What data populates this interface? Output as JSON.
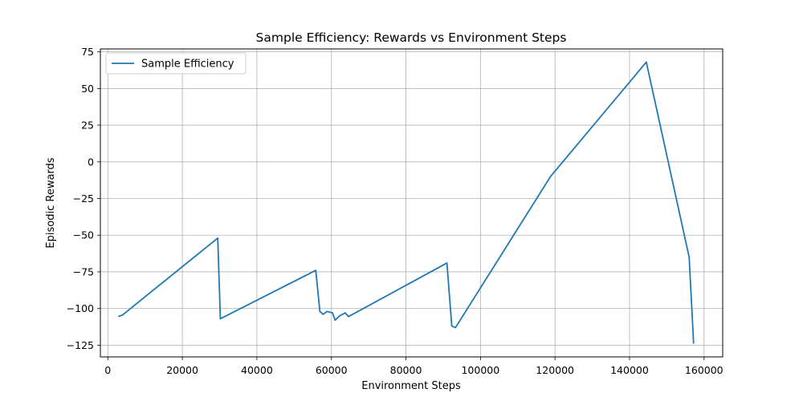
{
  "chart_data": {
    "type": "line",
    "title": "Sample Efficiency: Rewards vs Environment Steps",
    "xlabel": "Environment Steps",
    "ylabel": "Episodic Rewards",
    "xlim": [
      -2000,
      165000
    ],
    "ylim": [
      -133,
      77
    ],
    "xticks": [
      0,
      20000,
      40000,
      60000,
      80000,
      100000,
      120000,
      140000,
      160000
    ],
    "xtick_labels": [
      "0",
      "20000",
      "40000",
      "60000",
      "80000",
      "100000",
      "120000",
      "140000",
      "160000"
    ],
    "yticks": [
      -125,
      -100,
      -75,
      -50,
      -25,
      0,
      25,
      50,
      75
    ],
    "ytick_labels": [
      "−125",
      "−100",
      "−75",
      "−50",
      "−25",
      "0",
      "25",
      "50",
      "75"
    ],
    "grid": true,
    "legend": {
      "placement": "top-left"
    },
    "series": [
      {
        "name": "Sample Efficiency",
        "color": "#1f77b4",
        "x": [
          2800,
          3900,
          29500,
          30200,
          55800,
          56900,
          57800,
          58800,
          60300,
          61000,
          62200,
          63700,
          64600,
          91000,
          92300,
          93300,
          118800,
          144500,
          156000,
          157200
        ],
        "y": [
          -105.5,
          -104.5,
          -52,
          -107,
          -74,
          -102,
          -104,
          -102,
          -103,
          -108,
          -105,
          -103,
          -105.5,
          -69,
          -112,
          -113,
          -10,
          68,
          -65,
          -124
        ]
      }
    ]
  }
}
